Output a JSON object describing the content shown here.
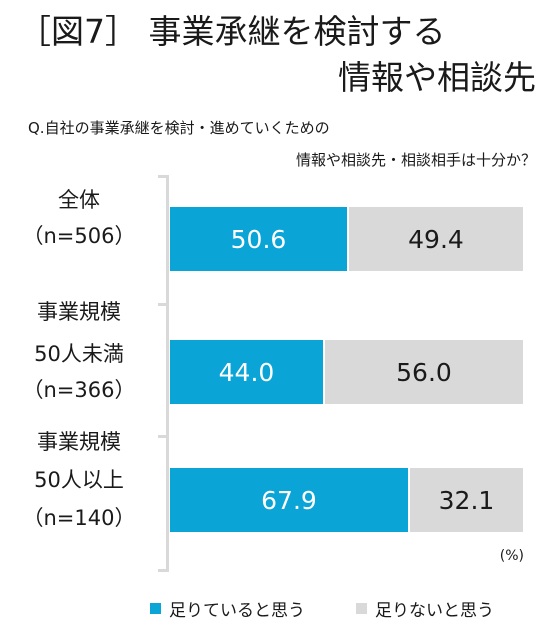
{
  "header": {
    "title_line1": "［図7］ 事業承継を検討する",
    "title_line2": "情報や相談先",
    "question_line1": "Q.自社の事業承継を検討・進めていくための",
    "question_line2": "情報や相談先・相談相手は十分か？"
  },
  "chart_data": {
    "type": "bar",
    "stacked": true,
    "orientation": "horizontal",
    "categories": [
      [
        "全体",
        "（n=506）"
      ],
      [
        "事業規模",
        "50人未満",
        "（n=366）"
      ],
      [
        "事業規模",
        "50人以上",
        "（n=140）"
      ]
    ],
    "series": [
      {
        "name": "足りていると思う",
        "values": [
          50.6,
          44.0,
          67.9
        ],
        "labels": [
          "50.6",
          "44.0",
          "67.9"
        ],
        "color": "#0aa4d6"
      },
      {
        "name": "足りないと思う",
        "values": [
          49.4,
          56.0,
          32.1
        ],
        "labels": [
          "49.4",
          "56.0",
          "32.1"
        ],
        "color": "#d9d9d9"
      }
    ],
    "xlim": [
      0,
      100
    ],
    "unit": "(%)",
    "legend_position": "bottom"
  }
}
